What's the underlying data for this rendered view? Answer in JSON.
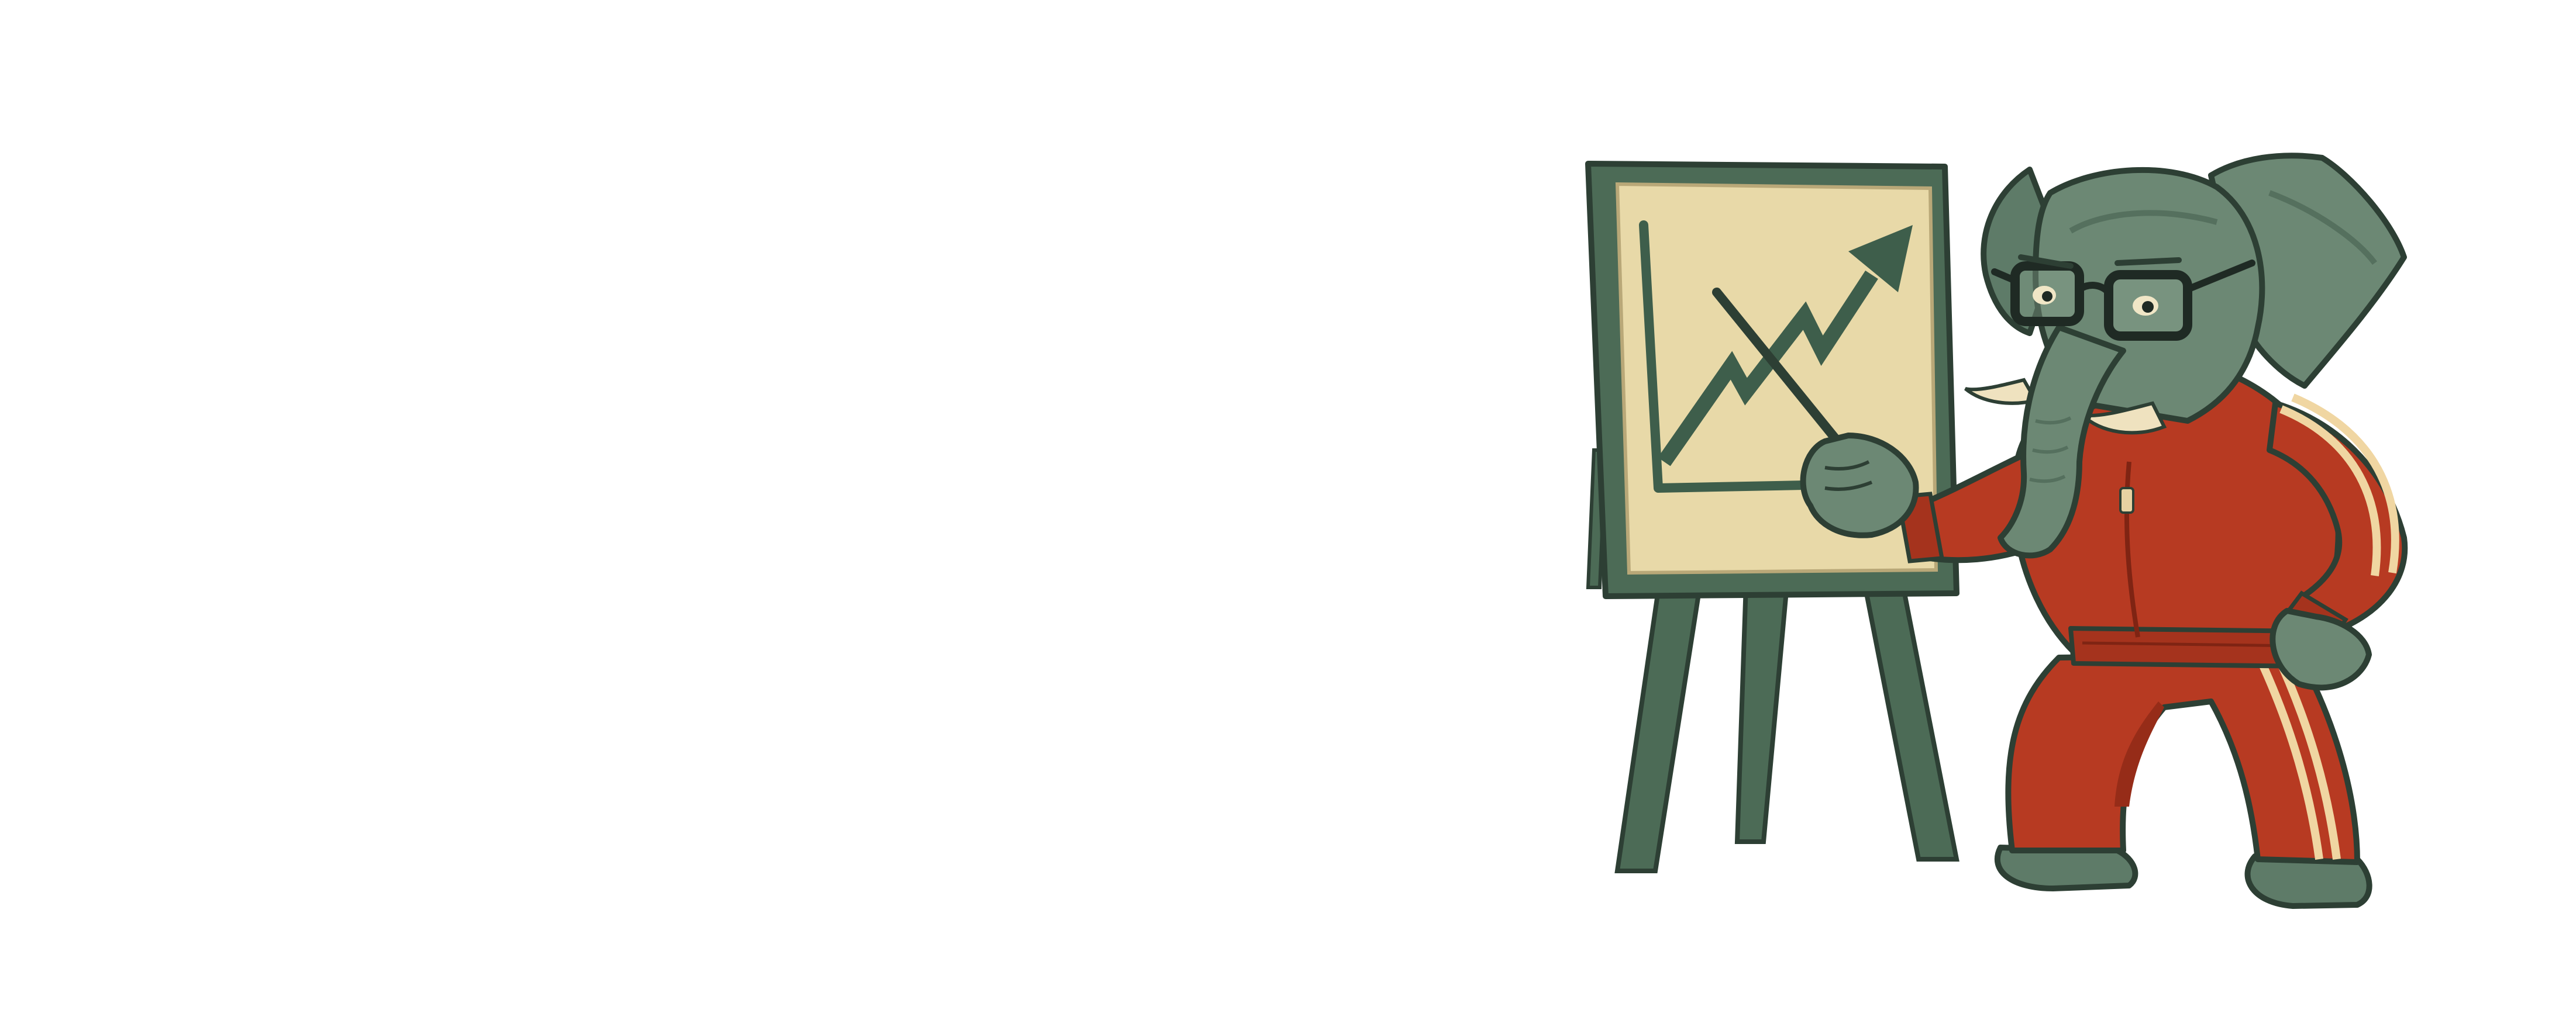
{
  "scene": {
    "subject": "elephant-presenter",
    "colors": {
      "background": "#ffffff",
      "board_frame": "#4c6b56",
      "board_paper": "#e8d9a8",
      "chart_line": "#3e5e4b",
      "elephant_skin": "#6c8874",
      "elephant_shade": "#55705e",
      "tracksuit": "#b73a22",
      "tracksuit_shade": "#962c18",
      "stripe": "#f0d6a2",
      "outline": "#2d3f34",
      "glasses": "#1f2a24",
      "tusk": "#efe2bf"
    },
    "icons": [
      "easel-icon",
      "rising-trend-arrow-icon",
      "pointer-stick-icon",
      "elephant-character",
      "eyeglasses-icon"
    ]
  }
}
